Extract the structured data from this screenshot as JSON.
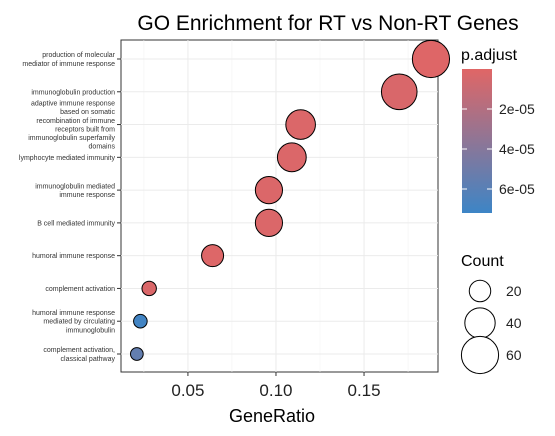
{
  "chart_data": {
    "type": "scatter",
    "title": "GO Enrichment for RT vs Non-RT Genes",
    "xlabel": "GeneRatio",
    "ylabel": "",
    "xlim": [
      0.012,
      0.192
    ],
    "xticks": [
      0.05,
      0.1,
      0.15
    ],
    "xtick_labels": [
      "0.05",
      "0.10",
      "0.15"
    ],
    "grid": true,
    "background": "#ffffff",
    "categories": [
      "production of molecular\nmediator of immune response",
      "immunoglobulin production",
      "adaptive immune response\nbased on somatic\nrecombination of immune\nreceptors built from\nimmunoglobulin superfamily\ndomains",
      "lymphocyte mediated immunity",
      "immunoglobulin mediated\nimmune response",
      "B cell mediated immunity",
      "humoral immune response",
      "complement activation",
      "humoral immune response\nmediated by circulating\nimmunoglobulin",
      "complement activation,\nclassical pathway"
    ],
    "points": [
      {
        "term": "production of molecular mediator of immune response",
        "x": 0.188,
        "count": 60,
        "p_adjust": 1e-06
      },
      {
        "term": "immunoglobulin production",
        "x": 0.17,
        "count": 55,
        "p_adjust": 3e-06
      },
      {
        "term": "adaptive immune response based on somatic recombination of immune receptors built from immunoglobulin superfamily domains",
        "x": 0.114,
        "count": 38,
        "p_adjust": 2e-06
      },
      {
        "term": "lymphocyte mediated immunity",
        "x": 0.109,
        "count": 36,
        "p_adjust": 2e-06
      },
      {
        "term": "immunoglobulin mediated immune response",
        "x": 0.096,
        "count": 32,
        "p_adjust": 2e-06
      },
      {
        "term": "B cell mediated immunity",
        "x": 0.096,
        "count": 32,
        "p_adjust": 2e-06
      },
      {
        "term": "humoral immune response",
        "x": 0.064,
        "count": 21,
        "p_adjust": 1.5e-06
      },
      {
        "term": "complement activation",
        "x": 0.028,
        "count": 9,
        "p_adjust": 2.5e-06
      },
      {
        "term": "humoral immune response mediated by circulating immunoglobulin",
        "x": 0.023,
        "count": 8,
        "p_adjust": 7e-05
      },
      {
        "term": "complement activation, classical pathway",
        "x": 0.021,
        "count": 7,
        "p_adjust": 5.5e-05
      }
    ],
    "color_legend": {
      "title": "p.adjust",
      "low_color": "#e06666",
      "high_color": "#3d85c6",
      "range": [
        0.0,
        7.2e-05
      ],
      "ticks": [
        2e-05,
        4e-05,
        6e-05
      ],
      "tick_labels": [
        "2e-05",
        "4e-05",
        "6e-05"
      ]
    },
    "size_legend": {
      "title": "Count",
      "values": [
        20,
        40,
        60
      ],
      "labels": [
        "20",
        "40",
        "60"
      ]
    },
    "point_stroke": "#000000",
    "grid_color": "#ebebeb"
  }
}
